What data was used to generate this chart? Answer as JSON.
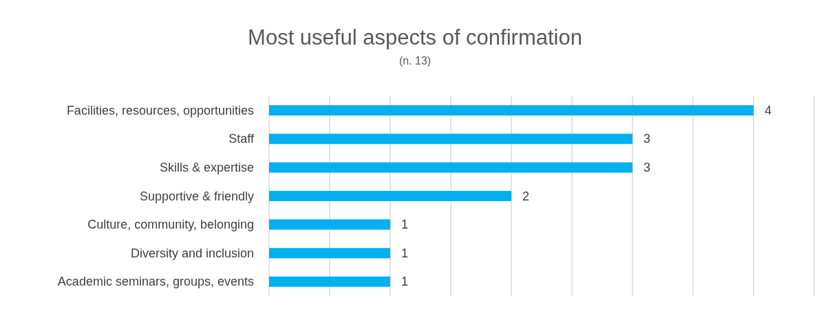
{
  "chart_data": {
    "type": "bar",
    "orientation": "horizontal",
    "title": "Most useful aspects of confirmation",
    "subtitle": "(n. 13)",
    "categories": [
      "Facilities, resources, opportunities",
      "Staff",
      "Skills & expertise",
      "Supportive & friendly",
      "Culture, community, belonging",
      "Diversity and inclusion",
      "Academic seminars, groups, events"
    ],
    "values": [
      4,
      3,
      3,
      2,
      1,
      1,
      1
    ],
    "color": "#00b0f0",
    "data_labels": true,
    "xlim": [
      0,
      4.5
    ],
    "xticks": [
      {
        "value": 0,
        "label": null
      },
      {
        "value": 0.5,
        "label": null
      },
      {
        "value": 1,
        "label": null
      },
      {
        "value": 1.5,
        "label": null
      },
      {
        "value": 2,
        "label": null
      },
      {
        "value": 2.5,
        "label": null
      },
      {
        "value": 3,
        "label": null
      },
      {
        "value": 3.5,
        "label": null
      },
      {
        "value": 4,
        "label": null
      },
      {
        "value": 4.5,
        "label": null
      }
    ],
    "tick_labels": "y",
    "grid": "x"
  }
}
